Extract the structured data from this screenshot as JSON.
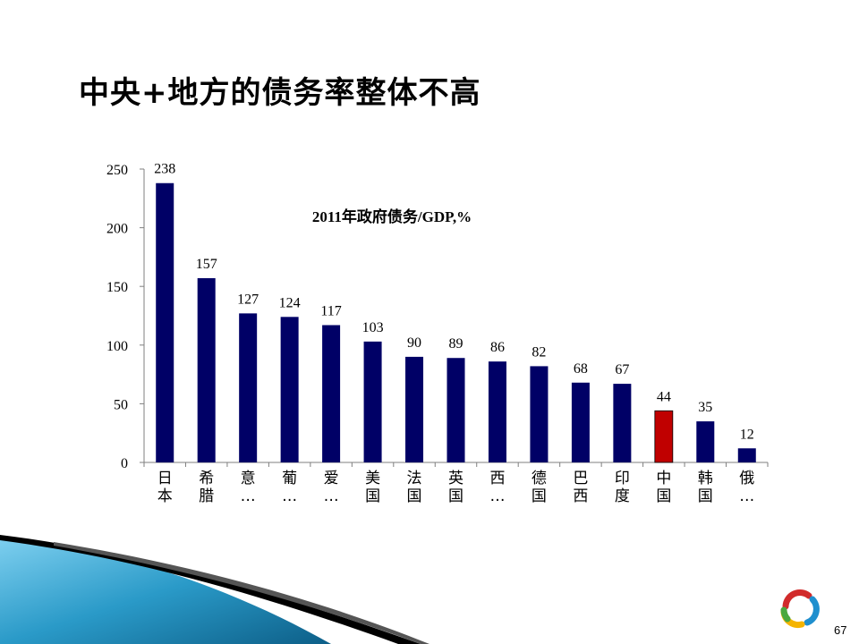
{
  "slide": {
    "title": "中央+地方的债务率整体不高",
    "page_number": "67"
  },
  "chart_data": {
    "type": "bar",
    "title": "2011年政府债务/GDP,%",
    "categories": [
      "日本",
      "希腊",
      "意…",
      "葡…",
      "爱…",
      "美国",
      "法国",
      "英国",
      "西…",
      "德国",
      "巴西",
      "印度",
      "中国",
      "韩国",
      "俄…"
    ],
    "values": [
      238,
      157,
      127,
      124,
      117,
      103,
      90,
      89,
      86,
      82,
      68,
      67,
      44,
      35,
      12
    ],
    "highlight_index": 12,
    "ylim": [
      0,
      250
    ],
    "yticks": [
      0,
      50,
      100,
      150,
      200,
      250
    ],
    "xlabel": "",
    "ylabel": "",
    "grid": false,
    "colors": {
      "bar": "#000066",
      "highlight": "#c00000"
    }
  }
}
